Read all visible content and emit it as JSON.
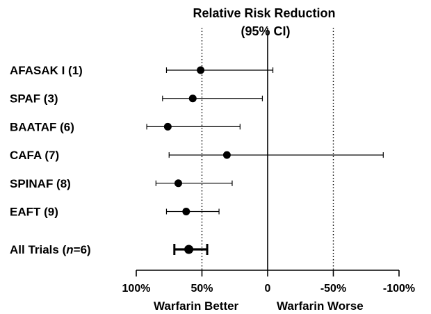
{
  "chart_data": {
    "type": "forest",
    "title_line1": "Relative Risk Reduction",
    "title_line2": "(95% CI)",
    "x_axis": {
      "reversed": true,
      "xlim": [
        100,
        -100
      ],
      "ticks": [
        {
          "value": 100,
          "label": "100%"
        },
        {
          "value": 50,
          "label": "50%"
        },
        {
          "value": 0,
          "label": "0"
        },
        {
          "value": -50,
          "label": "-50%"
        },
        {
          "value": -100,
          "label": "-100%"
        }
      ],
      "reference_lines": [
        {
          "value": 0,
          "style": "solid"
        },
        {
          "value": 50,
          "style": "dotted"
        },
        {
          "value": -50,
          "style": "dotted"
        }
      ],
      "left_caption": "Warfarin Better",
      "right_caption": "Warfarin Worse"
    },
    "studies": [
      {
        "label": "AFASAK I (1)",
        "estimate": 51,
        "ci_low": -4,
        "ci_high": 77
      },
      {
        "label": "SPAF (3)",
        "estimate": 57,
        "ci_low": 4,
        "ci_high": 80
      },
      {
        "label": "BAATAF (6)",
        "estimate": 76,
        "ci_low": 21,
        "ci_high": 92
      },
      {
        "label": "CAFA (7)",
        "estimate": 31,
        "ci_low": -88,
        "ci_high": 75
      },
      {
        "label": "SPINAF (8)",
        "estimate": 68,
        "ci_low": 27,
        "ci_high": 85
      },
      {
        "label": "EAFT (9)",
        "estimate": 62,
        "ci_low": 37,
        "ci_high": 77
      }
    ],
    "pooled": {
      "label_prefix": "All Trials (",
      "label_italic": "n",
      "label_suffix": "=6)",
      "estimate": 60,
      "ci_low": 46,
      "ci_high": 71
    }
  }
}
